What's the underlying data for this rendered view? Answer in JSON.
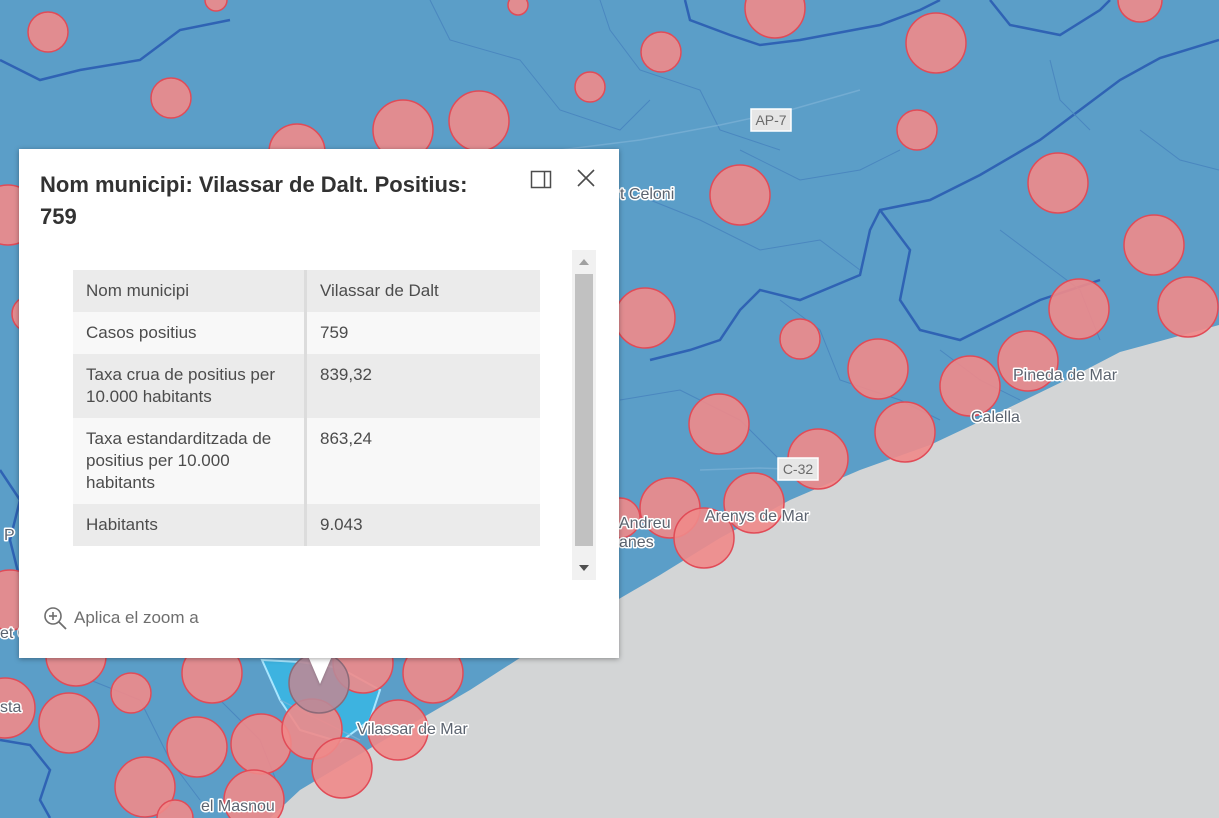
{
  "map": {
    "place_labels": [
      "t Celoni",
      "Pineda de Mar",
      "Calella",
      "Arenys de Mar",
      "Andreu",
      "anes",
      "Vilassar de Mar",
      "el Masnou",
      "P",
      "et C",
      "sta"
    ],
    "road_labels": [
      "AP-7",
      "C-32"
    ],
    "colors": {
      "land": "#5b9ec8",
      "sea": "#d3d5d6",
      "circle_fill": "#f08a8a",
      "circle_stroke": "#e14b57",
      "boundary": "#2f63b4",
      "selected": "#3db3e0"
    }
  },
  "popup": {
    "title": "Nom municipi: Vilassar de Dalt. Positius: 759",
    "dock_icon": "dock-side-icon",
    "close_icon": "close-icon",
    "rows": [
      {
        "key": "Nom municipi",
        "value": "Vilassar de Dalt"
      },
      {
        "key": "Casos positius",
        "value": "759"
      },
      {
        "key": "Taxa crua de positius per 10.000 habitants",
        "value": "839,32"
      },
      {
        "key": "Taxa estandarditzada de positius per 10.000 habitants",
        "value": "863,24"
      },
      {
        "key": "Habitants",
        "value": "9.043"
      }
    ],
    "zoom_action": "Aplica el zoom a",
    "zoom_icon": "zoom-in-icon"
  }
}
